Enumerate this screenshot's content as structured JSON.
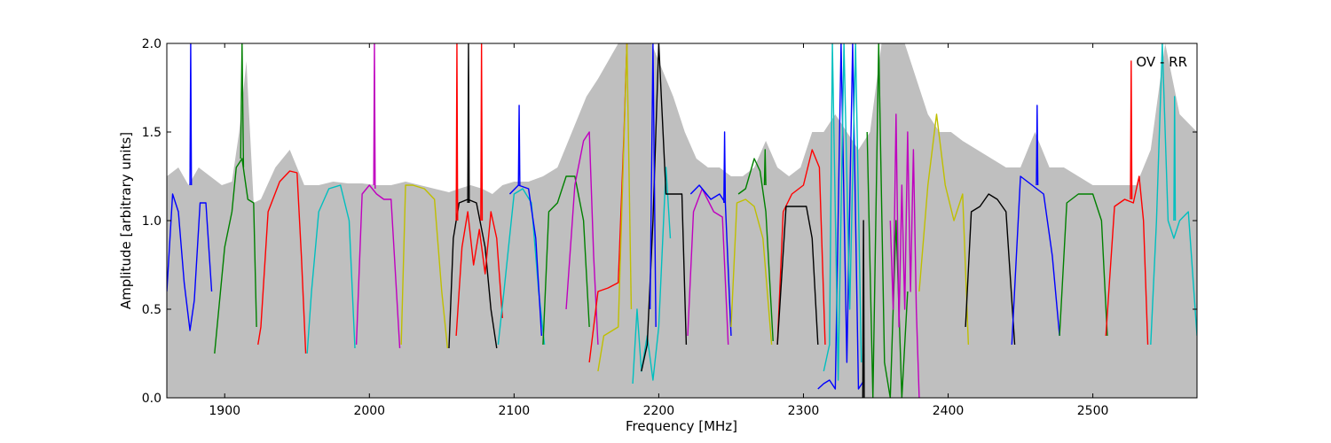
{
  "chart_data": {
    "type": "line",
    "title": "",
    "xlabel": "Frequency [MHz]",
    "ylabel": "Amplitude [arbitrary units]",
    "xlim": [
      1860,
      2572
    ],
    "ylim": [
      0.0,
      2.0
    ],
    "x_ticks": [
      1900,
      2000,
      2100,
      2200,
      2300,
      2400,
      2500
    ],
    "x_tick_labels": [
      "1900",
      "2000",
      "2100",
      "2200",
      "2300",
      "2400",
      "2500"
    ],
    "y_ticks": [
      0.0,
      0.5,
      1.0,
      1.5,
      2.0
    ],
    "y_tick_labels": [
      "0.0",
      "0.5",
      "1.0",
      "1.5",
      "2.0"
    ],
    "grid": false,
    "legend": "none",
    "annotation": "OV - RR",
    "colors": {
      "envelope": "#bfbfbf",
      "blue": "#0000ff",
      "green": "#008000",
      "red": "#ff0000",
      "cyan": "#00bfbf",
      "magenta": "#bf00bf",
      "yellow": "#bfbf00",
      "black": "#000000"
    },
    "envelope": {
      "x": [
        1860,
        1868,
        1875,
        1882,
        1890,
        1898,
        1905,
        1910,
        1915,
        1920,
        1925,
        1935,
        1945,
        1955,
        1965,
        1975,
        1985,
        1995,
        2005,
        2015,
        2025,
        2035,
        2045,
        2055,
        2062,
        2070,
        2078,
        2085,
        2092,
        2100,
        2110,
        2120,
        2130,
        2140,
        2150,
        2158,
        2165,
        2172,
        2180,
        2188,
        2195,
        2200,
        2210,
        2218,
        2226,
        2234,
        2242,
        2250,
        2258,
        2266,
        2274,
        2282,
        2290,
        2298,
        2306,
        2314,
        2322,
        2330,
        2338,
        2346,
        2354,
        2362,
        2370,
        2378,
        2386,
        2394,
        2402,
        2410,
        2420,
        2430,
        2440,
        2450,
        2460,
        2470,
        2480,
        2490,
        2500,
        2510,
        2520,
        2530,
        2540,
        2550,
        2560,
        2572
      ],
      "y": [
        1.25,
        1.3,
        1.2,
        1.3,
        1.25,
        1.2,
        1.22,
        1.5,
        1.9,
        1.1,
        1.12,
        1.3,
        1.4,
        1.2,
        1.2,
        1.22,
        1.21,
        1.21,
        1.2,
        1.2,
        1.22,
        1.2,
        1.18,
        1.16,
        1.18,
        1.2,
        1.18,
        1.15,
        1.2,
        1.22,
        1.22,
        1.25,
        1.3,
        1.5,
        1.7,
        1.8,
        1.9,
        2.0,
        2.0,
        2.0,
        2.0,
        1.9,
        1.7,
        1.5,
        1.35,
        1.3,
        1.3,
        1.25,
        1.25,
        1.3,
        1.45,
        1.3,
        1.25,
        1.3,
        1.5,
        1.5,
        1.6,
        1.5,
        1.4,
        1.5,
        2.0,
        2.0,
        2.0,
        1.8,
        1.6,
        1.5,
        1.5,
        1.45,
        1.4,
        1.35,
        1.3,
        1.3,
        1.5,
        1.3,
        1.3,
        1.25,
        1.2,
        1.2,
        1.2,
        1.2,
        1.4,
        2.0,
        1.6,
        1.5
      ]
    },
    "series": [
      {
        "color": "blue",
        "x": [
          1860,
          1864,
          1868,
          1872,
          1876,
          1879,
          1883,
          1887,
          1891
        ],
        "y": [
          0.6,
          1.15,
          1.05,
          0.65,
          0.38,
          0.55,
          1.1,
          1.1,
          0.6
        ]
      },
      {
        "color": "blue",
        "x": [
          1876,
          1876.5,
          1877
        ],
        "y": [
          1.2,
          2.0,
          1.2
        ]
      },
      {
        "color": "green",
        "x": [
          1893,
          1900,
          1905,
          1908,
          1912,
          1916,
          1920,
          1922
        ],
        "y": [
          0.25,
          0.85,
          1.05,
          1.3,
          1.35,
          1.12,
          1.1,
          0.4
        ]
      },
      {
        "color": "green",
        "x": [
          1911,
          1912,
          1913
        ],
        "y": [
          1.35,
          2.0,
          1.3
        ]
      },
      {
        "color": "red",
        "x": [
          1923,
          1925,
          1930,
          1938,
          1945,
          1950,
          1953,
          1956
        ],
        "y": [
          0.3,
          0.4,
          1.05,
          1.22,
          1.28,
          1.27,
          0.8,
          0.25
        ]
      },
      {
        "color": "cyan",
        "x": [
          1957,
          1960,
          1965,
          1972,
          1980,
          1986,
          1990
        ],
        "y": [
          0.25,
          0.6,
          1.05,
          1.18,
          1.2,
          1.0,
          0.28
        ]
      },
      {
        "color": "magenta",
        "x": [
          1991,
          1995,
          2000,
          2005,
          2010,
          2015,
          2018,
          2021
        ],
        "y": [
          0.3,
          1.15,
          1.2,
          1.15,
          1.12,
          1.12,
          0.7,
          0.28
        ]
      },
      {
        "color": "magenta",
        "x": [
          2003,
          2003.5,
          2004
        ],
        "y": [
          1.2,
          2.0,
          1.18
        ]
      },
      {
        "color": "yellow",
        "x": [
          2022,
          2025,
          2030,
          2038,
          2045,
          2050,
          2054
        ],
        "y": [
          0.3,
          1.2,
          1.2,
          1.18,
          1.12,
          0.6,
          0.28
        ]
      },
      {
        "color": "black",
        "x": [
          2055,
          2058,
          2062,
          2068,
          2074,
          2080,
          2084,
          2088
        ],
        "y": [
          0.28,
          0.9,
          1.1,
          1.12,
          1.1,
          0.85,
          0.5,
          0.28
        ]
      },
      {
        "color": "black",
        "x": [
          2068,
          2068.5,
          2069
        ],
        "y": [
          1.1,
          2.0,
          1.1
        ]
      },
      {
        "color": "red",
        "x": [
          2060,
          2064,
          2068,
          2072,
          2076,
          2080,
          2084,
          2088,
          2092
        ],
        "y": [
          0.35,
          0.85,
          1.05,
          0.75,
          0.95,
          0.7,
          1.05,
          0.9,
          0.45
        ]
      },
      {
        "color": "red",
        "x": [
          2060,
          2060.5,
          2061
        ],
        "y": [
          1.0,
          2.0,
          1.0
        ]
      },
      {
        "color": "red",
        "x": [
          2077,
          2077.5,
          2078
        ],
        "y": [
          1.0,
          2.0,
          1.0
        ]
      },
      {
        "color": "cyan",
        "x": [
          2089,
          2093,
          2100,
          2106,
          2112,
          2117,
          2121
        ],
        "y": [
          0.3,
          0.6,
          1.15,
          1.18,
          1.1,
          0.6,
          0.3
        ]
      },
      {
        "color": "blue",
        "x": [
          2097,
          2103,
          2110,
          2115,
          2119
        ],
        "y": [
          1.15,
          1.2,
          1.18,
          0.9,
          0.35
        ]
      },
      {
        "color": "blue",
        "x": [
          2103,
          2103.5,
          2104
        ],
        "y": [
          1.2,
          1.65,
          1.2
        ]
      },
      {
        "color": "green",
        "x": [
          2120,
          2124,
          2130,
          2136,
          2142,
          2148,
          2152
        ],
        "y": [
          0.3,
          1.05,
          1.1,
          1.25,
          1.25,
          1.0,
          0.4
        ]
      },
      {
        "color": "magenta",
        "x": [
          2136,
          2142,
          2148,
          2152,
          2155,
          2158
        ],
        "y": [
          0.5,
          1.2,
          1.45,
          1.5,
          0.8,
          0.3
        ]
      },
      {
        "color": "red",
        "x": [
          2152,
          2158,
          2165,
          2172,
          2176,
          2178
        ],
        "y": [
          0.2,
          0.6,
          0.62,
          0.65,
          1.5,
          2.0
        ]
      },
      {
        "color": "yellow",
        "x": [
          2158,
          2162,
          2168,
          2172,
          2175,
          2178,
          2181
        ],
        "y": [
          0.15,
          0.35,
          0.38,
          0.4,
          1.2,
          2.0,
          0.5
        ]
      },
      {
        "color": "cyan",
        "x": [
          2182,
          2185,
          2188,
          2192,
          2196,
          2200,
          2205,
          2208
        ],
        "y": [
          0.08,
          0.5,
          0.15,
          0.35,
          0.1,
          0.4,
          1.3,
          0.9
        ]
      },
      {
        "color": "black",
        "x": [
          2188,
          2192,
          2196,
          2200,
          2205,
          2212,
          2216,
          2219
        ],
        "y": [
          0.15,
          0.3,
          1.0,
          2.0,
          1.15,
          1.15,
          1.15,
          0.3
        ]
      },
      {
        "color": "blue",
        "x": [
          2194,
          2196,
          2198
        ],
        "y": [
          0.5,
          2.0,
          0.4
        ]
      },
      {
        "color": "magenta",
        "x": [
          2220,
          2224,
          2230,
          2238,
          2244,
          2248
        ],
        "y": [
          0.35,
          1.05,
          1.18,
          1.05,
          1.02,
          0.3
        ]
      },
      {
        "color": "blue",
        "x": [
          2222,
          2228,
          2236,
          2242,
          2246,
          2250
        ],
        "y": [
          1.15,
          1.2,
          1.12,
          1.15,
          1.1,
          0.35
        ]
      },
      {
        "color": "blue",
        "x": [
          2245,
          2245.5,
          2246
        ],
        "y": [
          1.1,
          1.5,
          1.1
        ]
      },
      {
        "color": "yellow",
        "x": [
          2250,
          2254,
          2260,
          2266,
          2272,
          2278
        ],
        "y": [
          0.4,
          1.1,
          1.12,
          1.08,
          0.9,
          0.3
        ]
      },
      {
        "color": "green",
        "x": [
          2255,
          2260,
          2266,
          2270,
          2274,
          2279
        ],
        "y": [
          1.15,
          1.18,
          1.35,
          1.28,
          1.05,
          0.32
        ]
      },
      {
        "color": "green",
        "x": [
          2273,
          2273.5,
          2274
        ],
        "y": [
          1.2,
          1.4,
          1.2
        ]
      },
      {
        "color": "red",
        "x": [
          2282,
          2286,
          2292,
          2300,
          2306,
          2311,
          2315
        ],
        "y": [
          0.3,
          1.05,
          1.15,
          1.2,
          1.4,
          1.3,
          0.3
        ]
      },
      {
        "color": "black",
        "x": [
          2282,
          2288,
          2296,
          2302,
          2306,
          2310
        ],
        "y": [
          0.3,
          1.08,
          1.08,
          1.08,
          0.9,
          0.3
        ]
      },
      {
        "color": "blue",
        "x": [
          2310,
          2314,
          2318,
          2322,
          2326,
          2330,
          2334,
          2338,
          2342
        ],
        "y": [
          0.05,
          0.08,
          0.1,
          0.05,
          2.0,
          0.2,
          2.0,
          0.05,
          0.1
        ]
      },
      {
        "color": "cyan",
        "x": [
          2314,
          2318,
          2320,
          2324,
          2328,
          2332,
          2336,
          2340
        ],
        "y": [
          0.15,
          0.3,
          2.0,
          0.1,
          2.0,
          0.5,
          2.0,
          0.2
        ]
      },
      {
        "color": "black",
        "x": [
          2341,
          2341.5,
          2342
        ],
        "y": [
          0.0,
          1.0,
          0.0
        ]
      },
      {
        "color": "green",
        "x": [
          2344,
          2348,
          2352,
          2356,
          2360,
          2364,
          2368,
          2372
        ],
        "y": [
          1.5,
          0.0,
          2.0,
          0.2,
          0.0,
          1.0,
          0.0,
          0.6
        ]
      },
      {
        "color": "magenta",
        "x": [
          2360,
          2362,
          2364,
          2366,
          2368,
          2370,
          2372,
          2374,
          2376,
          2378,
          2380
        ],
        "y": [
          1.0,
          0.5,
          1.6,
          0.4,
          1.2,
          0.5,
          1.5,
          0.6,
          1.4,
          0.5,
          0.0
        ]
      },
      {
        "color": "yellow",
        "x": [
          2380,
          2386,
          2392,
          2398,
          2404,
          2410,
          2414
        ],
        "y": [
          0.6,
          1.2,
          1.6,
          1.2,
          1.0,
          1.15,
          0.3
        ]
      },
      {
        "color": "black",
        "x": [
          2412,
          2416,
          2422,
          2428,
          2434,
          2440,
          2446
        ],
        "y": [
          0.4,
          1.05,
          1.08,
          1.15,
          1.12,
          1.05,
          0.3
        ]
      },
      {
        "color": "blue",
        "x": [
          2444,
          2450,
          2458,
          2466,
          2472,
          2477
        ],
        "y": [
          0.3,
          1.25,
          1.2,
          1.15,
          0.8,
          0.35
        ]
      },
      {
        "color": "blue",
        "x": [
          2461,
          2461.5,
          2462
        ],
        "y": [
          1.2,
          1.65,
          1.2
        ]
      },
      {
        "color": "green",
        "x": [
          2477,
          2482,
          2490,
          2500,
          2506,
          2510
        ],
        "y": [
          0.35,
          1.1,
          1.15,
          1.15,
          1.0,
          0.35
        ]
      },
      {
        "color": "red",
        "x": [
          2509,
          2515,
          2522,
          2528,
          2532,
          2535,
          2538
        ],
        "y": [
          0.35,
          1.08,
          1.12,
          1.1,
          1.25,
          1.0,
          0.3
        ]
      },
      {
        "color": "red",
        "x": [
          2526,
          2526.5,
          2527
        ],
        "y": [
          1.12,
          1.9,
          1.12
        ]
      },
      {
        "color": "cyan",
        "x": [
          2540,
          2544,
          2548,
          2552,
          2556,
          2560,
          2566,
          2572
        ],
        "y": [
          0.3,
          1.0,
          2.0,
          1.0,
          0.9,
          1.0,
          1.05,
          0.35
        ]
      },
      {
        "color": "cyan",
        "x": [
          2556,
          2556.5,
          2557
        ],
        "y": [
          1.0,
          1.7,
          1.0
        ]
      }
    ]
  }
}
